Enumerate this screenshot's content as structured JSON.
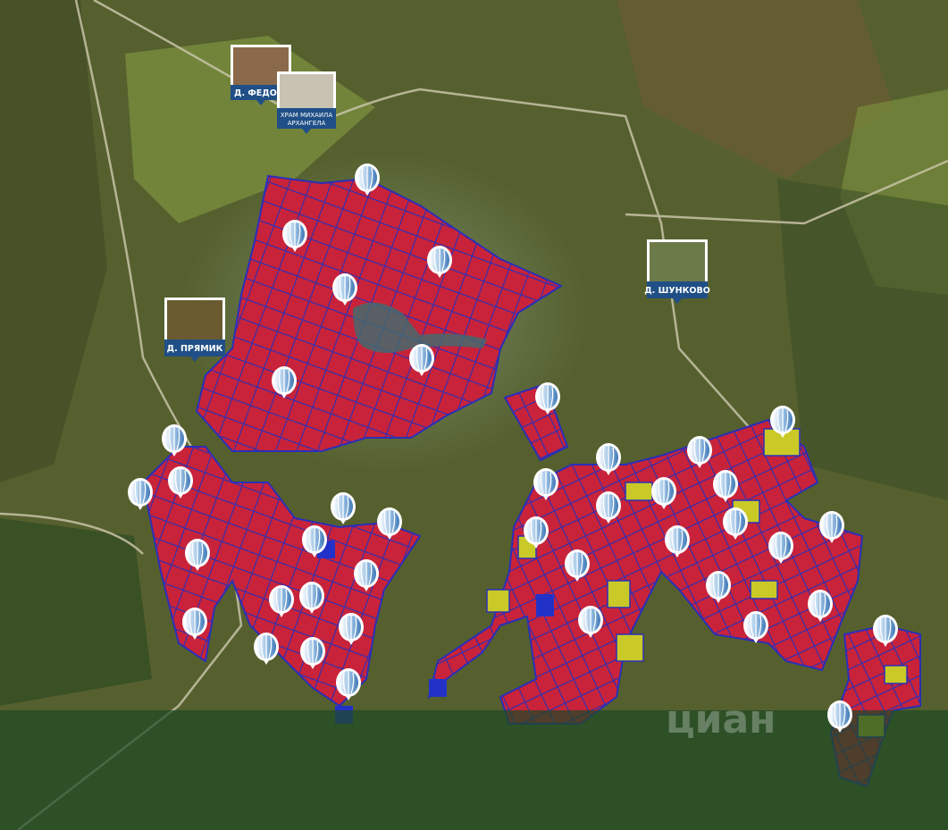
{
  "labels": [
    {
      "text": "Д. ФЕДОВО"
    },
    {
      "lines": [
        "ХРАМ МИХАИЛА",
        "АРХАНГЕЛА"
      ]
    },
    {
      "text": "Д. ПРЯМИК"
    },
    {
      "text": "Д. ШУНКОВО"
    }
  ],
  "watermark": "циан"
}
